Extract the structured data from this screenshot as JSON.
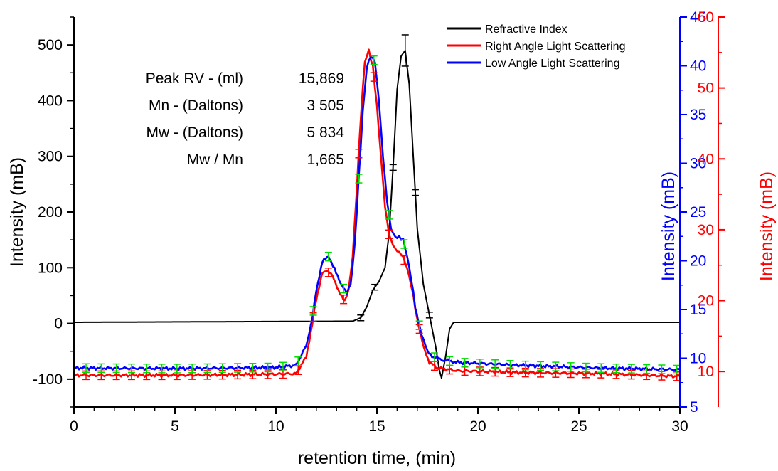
{
  "chart_data": {
    "type": "line",
    "xlabel": "retention time, (min)",
    "xlim": [
      0,
      30
    ],
    "xticks": [
      0,
      5,
      10,
      15,
      20,
      25,
      30
    ],
    "axes": {
      "left": {
        "label": "Intensity (mB)",
        "ylim": [
          -150,
          550
        ],
        "ticks": [
          -100,
          0,
          100,
          200,
          300,
          400,
          500
        ],
        "color": "#000000"
      },
      "right1": {
        "label": "Intensity (mB)",
        "ylim": [
          5,
          45
        ],
        "ticks": [
          5,
          10,
          15,
          20,
          25,
          30,
          35,
          40,
          45
        ],
        "color": "#0000ff"
      },
      "right2": {
        "label": "Intensity (mB)",
        "ylim": [
          5,
          60
        ],
        "ticks": [
          10,
          20,
          30,
          40,
          50,
          60
        ],
        "color": "#ff0000"
      }
    },
    "series": [
      {
        "name": "Refractive Index",
        "color": "#000000",
        "axis": "left",
        "x": [
          0,
          13.8,
          14.2,
          14.5,
          14.8,
          15.1,
          15.4,
          15.6,
          15.8,
          16.0,
          16.2,
          16.4,
          16.6,
          16.8,
          17.0,
          17.3,
          17.6,
          17.9,
          18.1,
          18.2,
          18.4,
          18.6,
          18.8,
          19.0,
          30
        ],
        "y": [
          2,
          4,
          10,
          30,
          60,
          75,
          100,
          160,
          280,
          420,
          480,
          490,
          430,
          300,
          170,
          70,
          15,
          -40,
          -85,
          -98,
          -60,
          -10,
          2,
          2,
          2
        ]
      },
      {
        "name": "Right Angle Light Scattering",
        "color": "#ff0000",
        "axis": "left",
        "x": [
          0,
          5,
          10,
          11.0,
          11.5,
          11.8,
          12.0,
          12.3,
          12.5,
          12.8,
          13.1,
          13.4,
          13.6,
          13.8,
          14.0,
          14.2,
          14.4,
          14.6,
          14.8,
          15.0,
          15.2,
          15.4,
          15.6,
          15.8,
          16.0,
          16.2,
          16.4,
          16.6,
          16.8,
          17.0,
          17.3,
          17.6,
          18.0,
          19,
          22,
          26,
          30
        ],
        "y": [
          -93,
          -93,
          -91,
          -90,
          -60,
          0,
          45,
          90,
          95,
          85,
          60,
          40,
          60,
          120,
          240,
          370,
          470,
          490,
          460,
          390,
          300,
          210,
          160,
          140,
          130,
          125,
          110,
          85,
          50,
          5,
          -40,
          -70,
          -80,
          -85,
          -88,
          -90,
          -95
        ]
      },
      {
        "name": "Low Angle Light Scattering",
        "color": "#0000ff",
        "axis": "left",
        "x": [
          0,
          5,
          10,
          11.0,
          11.5,
          11.8,
          12.0,
          12.3,
          12.6,
          12.9,
          13.2,
          13.5,
          13.7,
          13.9,
          14.1,
          14.3,
          14.5,
          14.7,
          14.9,
          15.1,
          15.3,
          15.5,
          15.7,
          15.9,
          16.1,
          16.3,
          16.5,
          16.7,
          16.9,
          17.2,
          17.5,
          17.8,
          18.2,
          19,
          22,
          26,
          30
        ],
        "y": [
          -80,
          -81,
          -79,
          -75,
          -40,
          10,
          60,
          110,
          120,
          100,
          70,
          55,
          70,
          140,
          260,
          380,
          460,
          480,
          470,
          400,
          300,
          220,
          170,
          155,
          155,
          150,
          120,
          80,
          30,
          -20,
          -50,
          -60,
          -65,
          -70,
          -75,
          -80,
          -83
        ]
      }
    ],
    "legend_position": "top-right",
    "table": {
      "rows": [
        {
          "label": "Peak RV - (ml)",
          "value": "15,869"
        },
        {
          "label": "Mn - (Daltons)",
          "value": "3 505"
        },
        {
          "label": "Mw - (Daltons)",
          "value": "5 834"
        },
        {
          "label": "Mw / Mn",
          "value": "1,665"
        }
      ]
    },
    "error_bar_color": "#00dd00"
  }
}
